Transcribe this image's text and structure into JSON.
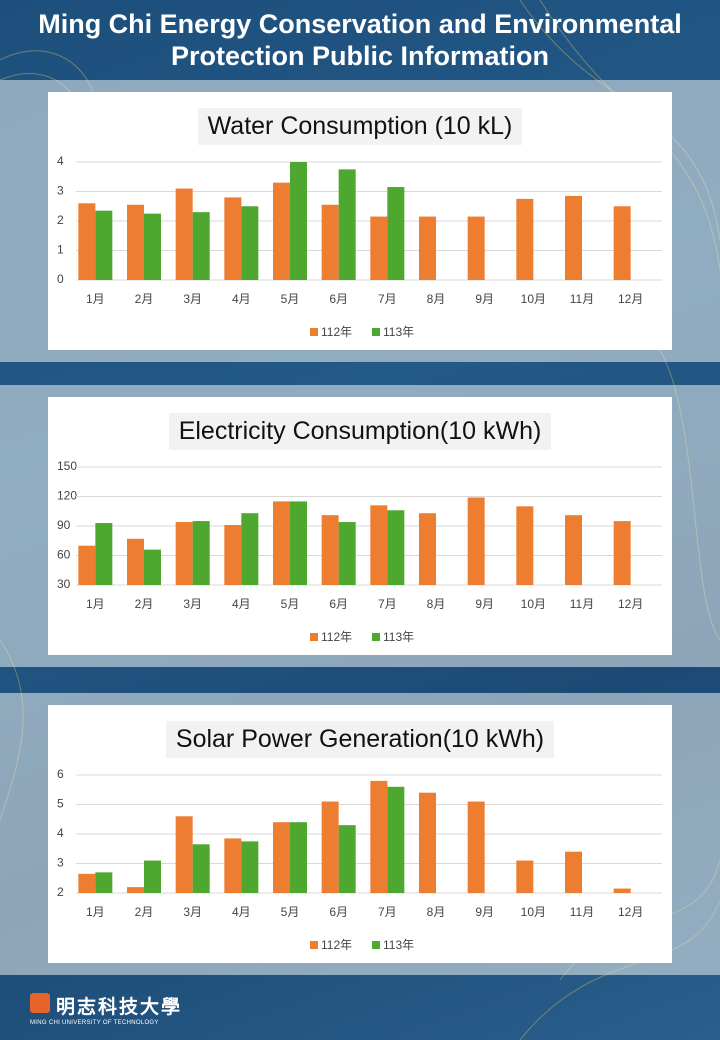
{
  "title": "Ming Chi Energy Conservation and Environmental Protection Public Information",
  "logo": {
    "name": "明志科技大學",
    "subtitle": "MING CHI UNIVERSITY OF TECHNOLOGY"
  },
  "chart_data": [
    {
      "type": "bar",
      "title": "Water Consumption (10 kL)",
      "categories": [
        "1月",
        "2月",
        "3月",
        "4月",
        "5月",
        "6月",
        "7月",
        "8月",
        "9月",
        "10月",
        "11月",
        "12月"
      ],
      "series": [
        {
          "name": "112年",
          "color": "#ed7d31",
          "values": [
            2.6,
            2.55,
            3.1,
            2.8,
            3.3,
            2.55,
            2.15,
            2.15,
            2.15,
            2.75,
            2.85,
            2.5
          ]
        },
        {
          "name": "113年",
          "color": "#4ea72e",
          "values": [
            2.35,
            2.25,
            2.3,
            2.5,
            4.0,
            3.75,
            3.15,
            null,
            null,
            null,
            null,
            null
          ]
        }
      ],
      "ylim": [
        0,
        4
      ],
      "yticks": [
        0,
        1,
        2,
        3,
        4
      ],
      "grid": true,
      "legend": "bottom"
    },
    {
      "type": "bar",
      "title": "Electricity Consumption(10 kWh)",
      "categories": [
        "1月",
        "2月",
        "3月",
        "4月",
        "5月",
        "6月",
        "7月",
        "8月",
        "9月",
        "10月",
        "11月",
        "12月"
      ],
      "series": [
        {
          "name": "112年",
          "color": "#ed7d31",
          "values": [
            70,
            77,
            94,
            91,
            115,
            101,
            111,
            103,
            119,
            110,
            101,
            95
          ]
        },
        {
          "name": "113年",
          "color": "#4ea72e",
          "values": [
            93,
            66,
            95,
            103,
            115,
            94,
            106,
            null,
            null,
            null,
            null,
            null
          ]
        }
      ],
      "ylim": [
        30,
        150
      ],
      "yticks": [
        30,
        60,
        90,
        120,
        150
      ],
      "grid": true,
      "legend": "bottom"
    },
    {
      "type": "bar",
      "title": "Solar Power Generation(10 kWh)",
      "categories": [
        "1月",
        "2月",
        "3月",
        "4月",
        "5月",
        "6月",
        "7月",
        "8月",
        "9月",
        "10月",
        "11月",
        "12月"
      ],
      "series": [
        {
          "name": "112年",
          "color": "#ed7d31",
          "values": [
            2.65,
            2.2,
            4.6,
            3.85,
            4.4,
            5.1,
            5.8,
            5.4,
            5.1,
            3.1,
            3.4,
            2.15
          ]
        },
        {
          "name": "113年",
          "color": "#4ea72e",
          "values": [
            2.7,
            3.1,
            3.65,
            3.75,
            4.4,
            4.3,
            5.6,
            null,
            null,
            null,
            null,
            null
          ]
        }
      ],
      "ylim": [
        2,
        6
      ],
      "yticks": [
        2,
        3,
        4,
        5,
        6
      ],
      "grid": true,
      "legend": "bottom"
    }
  ]
}
